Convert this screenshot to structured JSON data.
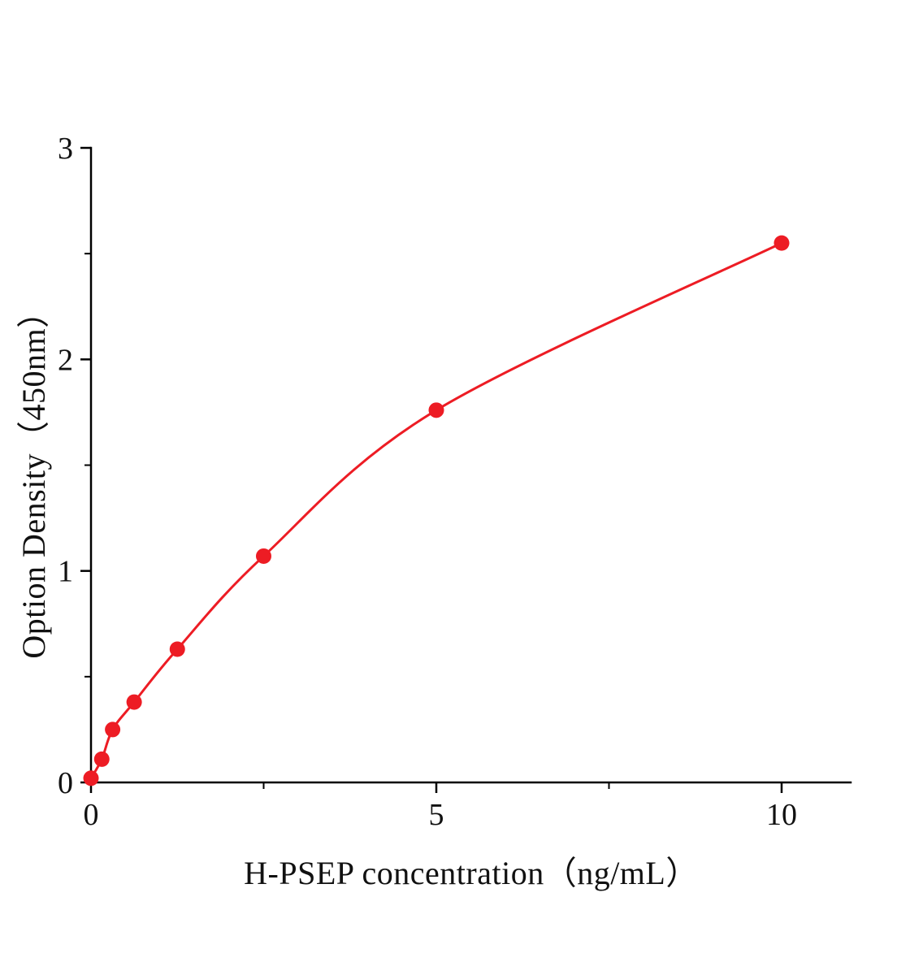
{
  "chart_data": {
    "type": "scatter",
    "title": "",
    "xlabel": "H-PSEP concentration（ng/mL）",
    "ylabel": "Option Density（450nm）",
    "x": [
      0,
      0.156,
      0.313,
      0.625,
      1.25,
      2.5,
      5,
      10
    ],
    "y": [
      0.02,
      0.11,
      0.25,
      0.38,
      0.63,
      1.07,
      1.76,
      2.55
    ],
    "curve": "smooth-through-points",
    "xlim": [
      0,
      11
    ],
    "ylim": [
      0,
      3
    ],
    "x_major_ticks": [
      0,
      5,
      10
    ],
    "x_major_tick_labels": [
      "0",
      "5",
      "10"
    ],
    "x_minor_ticks": [
      2.5,
      7.5
    ],
    "y_major_ticks": [
      0,
      1,
      2,
      3
    ],
    "y_major_tick_labels": [
      "0",
      "1",
      "2",
      "3"
    ],
    "y_minor_ticks": [
      0.5,
      1.5,
      2.5
    ],
    "legend": null,
    "grid": false,
    "marker_color": "#ed1c24",
    "line_color": "#ed1c24",
    "axis_color": "#000000"
  }
}
